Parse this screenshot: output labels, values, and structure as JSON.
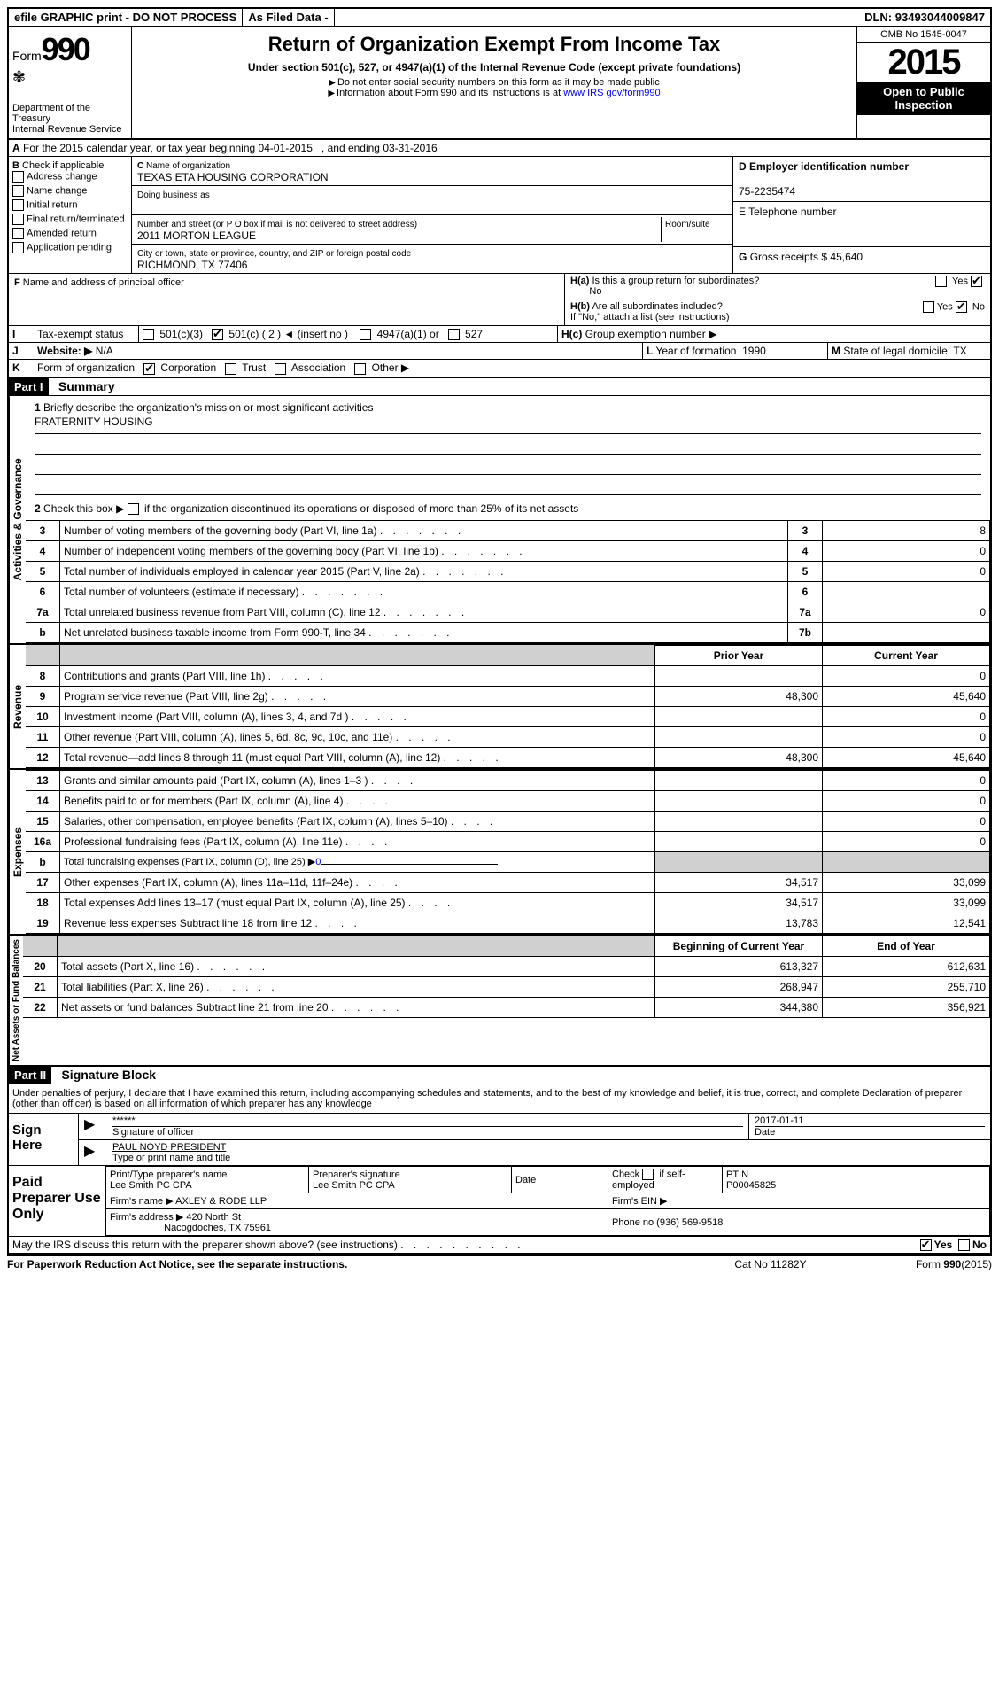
{
  "topbar": {
    "efile": "efile GRAPHIC print - DO NOT PROCESS",
    "asfiled": "As Filed Data -",
    "dln_label": "DLN:",
    "dln": "93493044009847"
  },
  "header": {
    "form_label": "Form",
    "form_num": "990",
    "dept1": "Department of the Treasury",
    "dept2": "Internal Revenue Service",
    "title": "Return of Organization Exempt From Income Tax",
    "subtitle": "Under section 501(c), 527, or 4947(a)(1) of the Internal Revenue Code (except private foundations)",
    "note1": "Do not enter social security numbers on this form as it may be made public",
    "note2": "Information about Form 990 and its instructions is at",
    "note2_link": "www IRS gov/form990",
    "omb": "OMB No 1545-0047",
    "year": "2015",
    "open1": "Open to Public",
    "open2": "Inspection"
  },
  "lineA": {
    "text": "For the 2015 calendar year, or tax year beginning 04-01-2015",
    "text2": ", and ending 03-31-2016"
  },
  "boxB": {
    "label": "B",
    "sub": "Check if applicable",
    "opts": [
      "Address change",
      "Name change",
      "Initial return",
      "Final return/terminated",
      "Amended return",
      "Application pending"
    ]
  },
  "boxC": {
    "label": "C",
    "name_label": "Name of organization",
    "name": "TEXAS ETA HOUSING CORPORATION",
    "dba_label": "Doing business as",
    "dba": "",
    "addr_label": "Number and street (or P O box if mail is not delivered to street address)",
    "room_label": "Room/suite",
    "addr": "2011 MORTON LEAGUE",
    "city_label": "City or town, state or province, country, and ZIP or foreign postal code",
    "city": "RICHMOND, TX 77406"
  },
  "boxD": {
    "label": "D Employer identification number",
    "val": "75-2235474"
  },
  "boxE": {
    "label": "E Telephone number",
    "val": ""
  },
  "boxG": {
    "label": "G",
    "text": "Gross receipts $",
    "val": "45,640"
  },
  "boxF": {
    "label": "F",
    "text": "Name and address of principal officer"
  },
  "boxH": {
    "a": "Is this a group return for subordinates?",
    "a_yes": "Yes",
    "a_no_checked": "No",
    "b": "Are all subordinates included?",
    "b_note": "If \"No,\" attach a list (see instructions)",
    "c": "Group exemption number"
  },
  "boxI": {
    "label": "I",
    "text": "Tax-exempt status",
    "opts": {
      "o1": "501(c)(3)",
      "o2": "501(c) ( 2 ) ◄ (insert no )",
      "o3": "4947(a)(1) or",
      "o4": "527"
    }
  },
  "boxJ": {
    "label": "J",
    "text": "Website: ▶",
    "val": "N/A"
  },
  "boxK": {
    "label": "K",
    "text": "Form of organization",
    "opts": [
      "Corporation",
      "Trust",
      "Association",
      "Other ▶"
    ]
  },
  "boxL": {
    "label": "L",
    "text": "Year of formation",
    "val": "1990"
  },
  "boxM": {
    "label": "M",
    "text": "State of legal domicile",
    "val": "TX"
  },
  "part1": {
    "tag": "Part I",
    "title": "Summary",
    "l1": "Briefly describe the organization's mission or most significant activities",
    "l1_val": "FRATERNITY HOUSING",
    "l2": "Check this box ▶",
    "l2b": "if the organization discontinued its operations or disposed of more than 25% of its net assets"
  },
  "sections": {
    "ag": "Activities & Governance",
    "rev": "Revenue",
    "exp": "Expenses",
    "na": "Net Assets or Fund Balances"
  },
  "govRows": [
    {
      "n": "3",
      "desc": "Number of voting members of the governing body (Part VI, line 1a)",
      "lbl": "3",
      "val": "8"
    },
    {
      "n": "4",
      "desc": "Number of independent voting members of the governing body (Part VI, line 1b)",
      "lbl": "4",
      "val": "0"
    },
    {
      "n": "5",
      "desc": "Total number of individuals employed in calendar year 2015 (Part V, line 2a)",
      "lbl": "5",
      "val": "0"
    },
    {
      "n": "6",
      "desc": "Total number of volunteers (estimate if necessary)",
      "lbl": "6",
      "val": ""
    },
    {
      "n": "7a",
      "desc": "Total unrelated business revenue from Part VIII, column (C), line 12",
      "lbl": "7a",
      "val": "0"
    },
    {
      "n": "b",
      "desc": "Net unrelated business taxable income from Form 990-T, line 34",
      "lbl": "7b",
      "val": ""
    }
  ],
  "colHeaders": {
    "prior": "Prior Year",
    "current": "Current Year"
  },
  "revRows": [
    {
      "n": "8",
      "desc": "Contributions and grants (Part VIII, line 1h)",
      "prior": "",
      "current": "0"
    },
    {
      "n": "9",
      "desc": "Program service revenue (Part VIII, line 2g)",
      "prior": "48,300",
      "current": "45,640"
    },
    {
      "n": "10",
      "desc": "Investment income (Part VIII, column (A), lines 3, 4, and 7d )",
      "prior": "",
      "current": "0"
    },
    {
      "n": "11",
      "desc": "Other revenue (Part VIII, column (A), lines 5, 6d, 8c, 9c, 10c, and 11e)",
      "prior": "",
      "current": "0"
    },
    {
      "n": "12",
      "desc": "Total revenue—add lines 8 through 11 (must equal Part VIII, column (A), line 12)",
      "prior": "48,300",
      "current": "45,640"
    }
  ],
  "expRows": [
    {
      "n": "13",
      "desc": "Grants and similar amounts paid (Part IX, column (A), lines 1–3 )",
      "prior": "",
      "current": "0"
    },
    {
      "n": "14",
      "desc": "Benefits paid to or for members (Part IX, column (A), line 4)",
      "prior": "",
      "current": "0"
    },
    {
      "n": "15",
      "desc": "Salaries, other compensation, employee benefits (Part IX, column (A), lines 5–10)",
      "prior": "",
      "current": "0"
    },
    {
      "n": "16a",
      "desc": "Professional fundraising fees (Part IX, column (A), line 11e)",
      "prior": "",
      "current": "0"
    }
  ],
  "expB": {
    "n": "b",
    "desc": "Total fundraising expenses (Part IX, column (D), line 25) ▶",
    "val": "0"
  },
  "expRows2": [
    {
      "n": "17",
      "desc": "Other expenses (Part IX, column (A), lines 11a–11d, 11f–24e)",
      "prior": "34,517",
      "current": "33,099"
    },
    {
      "n": "18",
      "desc": "Total expenses Add lines 13–17 (must equal Part IX, column (A), line 25)",
      "prior": "34,517",
      "current": "33,099"
    },
    {
      "n": "19",
      "desc": "Revenue less expenses Subtract line 18 from line 12",
      "prior": "13,783",
      "current": "12,541"
    }
  ],
  "colHeaders2": {
    "beg": "Beginning of Current Year",
    "end": "End of Year"
  },
  "naRows": [
    {
      "n": "20",
      "desc": "Total assets (Part X, line 16)",
      "prior": "613,327",
      "current": "612,631"
    },
    {
      "n": "21",
      "desc": "Total liabilities (Part X, line 26)",
      "prior": "268,947",
      "current": "255,710"
    },
    {
      "n": "22",
      "desc": "Net assets or fund balances Subtract line 21 from line 20",
      "prior": "344,380",
      "current": "356,921"
    }
  ],
  "part2": {
    "tag": "Part II",
    "title": "Signature Block",
    "oath": "Under penalties of perjury, I declare that I have examined this return, including accompanying schedules and statements, and to the best of my knowledge and belief, it is true, correct, and complete Declaration of preparer (other than officer) is based on all information of which preparer has any knowledge"
  },
  "sign": {
    "here": "Sign Here",
    "sig_mask": "******",
    "sig_label": "Signature of officer",
    "date": "2017-01-11",
    "date_label": "Date",
    "name": "PAUL NOYD PRESIDENT",
    "name_label": "Type or print name and title"
  },
  "prep": {
    "label": "Paid Preparer Use Only",
    "name_label": "Print/Type preparer's name",
    "name": "Lee Smith PC CPA",
    "sig_label": "Preparer's signature",
    "sig": "Lee Smith PC CPA",
    "date_label": "Date",
    "check_label": "Check",
    "check_if": "if self-employed",
    "ptin_label": "PTIN",
    "ptin": "P00045825",
    "firm_name_label": "Firm's name ▶",
    "firm_name": "AXLEY & RODE LLP",
    "firm_ein_label": "Firm's EIN ▶",
    "firm_addr_label": "Firm's address ▶",
    "firm_addr1": "420 North St",
    "firm_addr2": "Nacogdoches, TX  75961",
    "phone_label": "Phone no",
    "phone": "(936) 569-9518"
  },
  "footer": {
    "q": "May the IRS discuss this return with the preparer shown above? (see instructions)",
    "yes": "Yes",
    "no": "No",
    "paperwork": "For Paperwork Reduction Act Notice, see the separate instructions.",
    "cat": "Cat No 11282Y",
    "form": "Form",
    "formnum": "990",
    "formyear": "(2015)"
  }
}
